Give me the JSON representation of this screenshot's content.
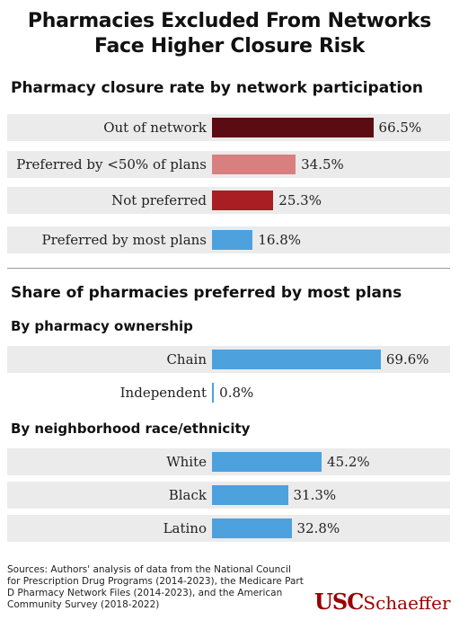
{
  "title_line1": "Pharmacies Excluded From Networks",
  "title_line2": "Face Higher Closure Risk",
  "colors": {
    "dark_maroon": "#5a0c12",
    "pink": "#d8807f",
    "red": "#a81e22",
    "blue": "#4da1dd",
    "row_shade": "#ebebeb",
    "logo_red": "#990000"
  },
  "chart_data": [
    {
      "type": "bar",
      "orientation": "horizontal",
      "title": "Pharmacy closure rate by network participation",
      "categories": [
        "Out of network",
        "Preferred by <50% of plans",
        "Not preferred",
        "Preferred by most plans"
      ],
      "values": [
        66.5,
        34.5,
        25.3,
        16.8
      ],
      "value_labels": [
        "66.5%",
        "34.5%",
        "25.3%",
        "16.8%"
      ],
      "colors": [
        "#5a0c12",
        "#d8807f",
        "#a81e22",
        "#4da1dd"
      ]
    },
    {
      "type": "bar",
      "orientation": "horizontal",
      "title": "Share of pharmacies preferred by most plans",
      "subtitle": "By pharmacy ownership",
      "categories": [
        "Chain",
        "Independent"
      ],
      "values": [
        69.6,
        0.8
      ],
      "value_labels": [
        "69.6%",
        "0.8%"
      ],
      "colors": [
        "#4da1dd",
        "#4da1dd"
      ]
    },
    {
      "type": "bar",
      "orientation": "horizontal",
      "subtitle": "By neighborhood race/ethnicity",
      "categories": [
        "White",
        "Black",
        "Latino"
      ],
      "values": [
        45.2,
        31.3,
        32.8
      ],
      "value_labels": [
        "45.2%",
        "31.3%",
        "32.8%"
      ],
      "colors": [
        "#4da1dd",
        "#4da1dd",
        "#4da1dd"
      ]
    }
  ],
  "sources": "Sources: Authors' analysis of data from the National Council for Prescription Drug Programs (2014-2023), the Medicare Part D Pharmacy Network Files (2014-2023), and the American Community Survey (2018-2022)",
  "logo": {
    "usc": "USC",
    "schaeffer": "Schaeffer"
  }
}
